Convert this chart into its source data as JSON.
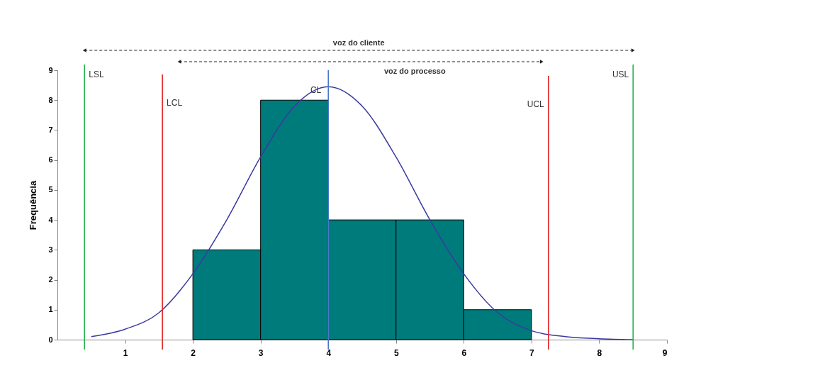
{
  "chart_data": {
    "type": "histogram",
    "ylabel": "Frequência",
    "bins": [
      2,
      3,
      4,
      5,
      6,
      7
    ],
    "values": [
      3,
      8,
      4,
      4,
      1
    ],
    "color": "#007b7b",
    "series": [
      {
        "type": "line",
        "color": "#3a3aa0",
        "x": [
          0.5,
          1,
          1.5,
          2,
          2.5,
          3,
          3.5,
          4,
          4.5,
          5,
          5.5,
          6,
          6.5,
          7,
          7.5,
          8,
          8.5
        ],
        "values": [
          0.1,
          0.35,
          0.9,
          2.2,
          4.0,
          6.1,
          7.8,
          8.45,
          7.8,
          6.1,
          4.0,
          2.2,
          0.9,
          0.3,
          0.1,
          0.03,
          0.0
        ]
      }
    ],
    "xlim": [
      0,
      9
    ],
    "xticks": [
      1,
      2,
      3,
      4,
      5,
      6,
      7,
      8,
      9
    ],
    "ylim": [
      0,
      9
    ],
    "yticks": [
      0,
      1,
      2,
      3,
      4,
      5,
      6,
      7,
      8,
      9
    ],
    "grid": false,
    "ref_lines": [
      {
        "axis": "x",
        "value": 0.4,
        "label": "LSL",
        "color": "#22b14c"
      },
      {
        "axis": "x",
        "value": 1.55,
        "label": "LCL",
        "color": "#e02020"
      },
      {
        "axis": "x",
        "value": 4.0,
        "label": "CL",
        "color": "#4a78c8"
      },
      {
        "axis": "x",
        "value": 7.25,
        "label": "UCL",
        "color": "#e02020"
      },
      {
        "axis": "x",
        "value": 8.5,
        "label": "USL",
        "color": "#22b14c"
      }
    ],
    "annotations": [
      "voz do cliente",
      "voz do processo"
    ]
  }
}
